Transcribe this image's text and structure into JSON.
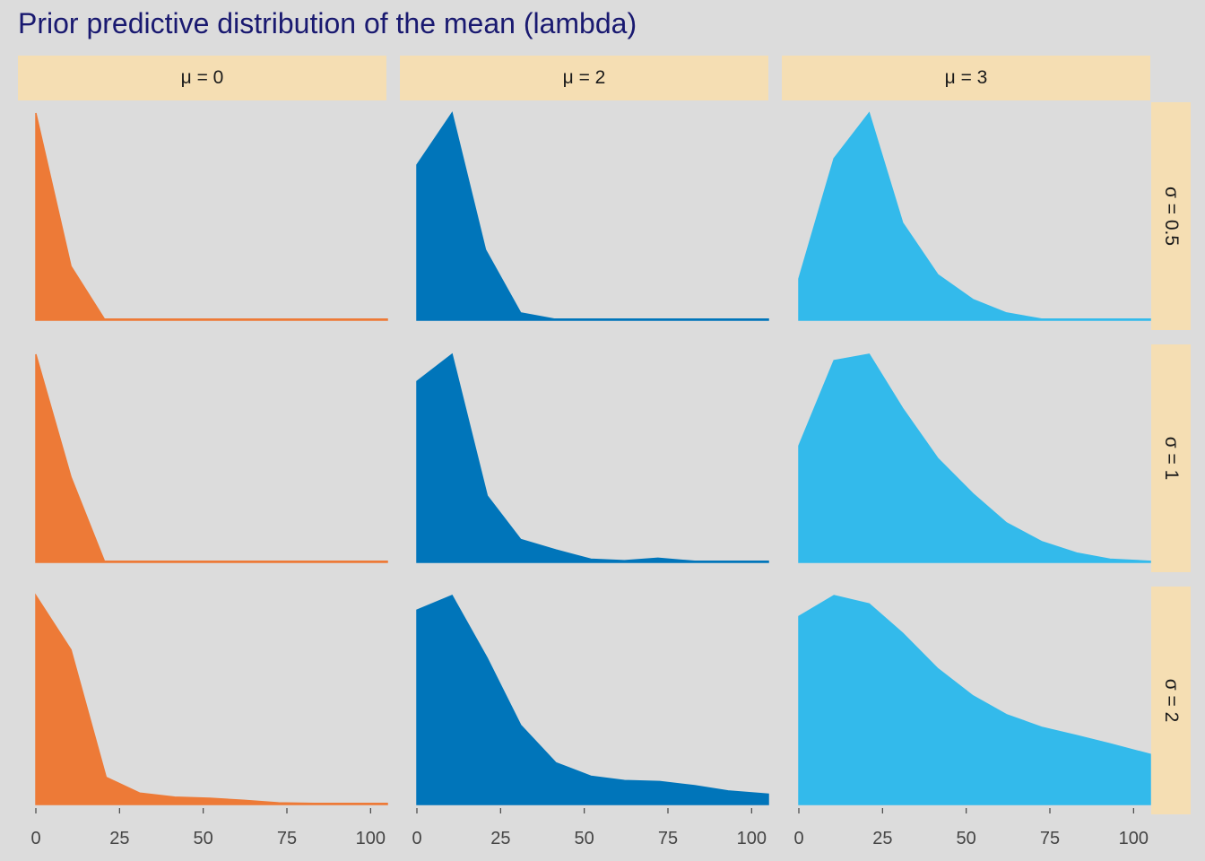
{
  "title": "Prior predictive distribution of the mean (lambda)",
  "chart_data": {
    "type": "area",
    "title": "Prior predictive distribution of the mean (lambda)",
    "xlabel": "",
    "ylabel": "",
    "xlim": [
      0,
      105
    ],
    "x_ticks": [
      0,
      25,
      50,
      75,
      100
    ],
    "x_tick_labels": [
      "0",
      "25",
      "50",
      "75",
      "100"
    ],
    "y_axis_shown": false,
    "grid": false,
    "facet_columns": [
      "μ = 0",
      "μ = 2",
      "μ = 3"
    ],
    "facet_rows": [
      "σ = 0.5",
      "σ = 1",
      "σ = 2"
    ],
    "colors": {
      "μ = 0": "#ed7a37",
      "μ = 2": "#0075ba",
      "μ = 3": "#33baeb"
    },
    "panels": [
      {
        "col": "μ = 0",
        "row": "σ = 0.5",
        "x": [
          0,
          10.5,
          20.5,
          105
        ],
        "y": [
          1.0,
          0.26,
          0.005,
          0.005
        ]
      },
      {
        "col": "μ = 2",
        "row": "σ = 0.5",
        "x": [
          0,
          10.5,
          20.5,
          31,
          41,
          105
        ],
        "y": [
          0.75,
          1.0,
          0.34,
          0.035,
          0.005,
          0.005
        ]
      },
      {
        "col": "μ = 3",
        "row": "σ = 0.5",
        "x": [
          0,
          10.5,
          21,
          31,
          41.5,
          52,
          62,
          72.5,
          83,
          93,
          105
        ],
        "y": [
          0.2,
          0.78,
          1.0,
          0.47,
          0.22,
          0.1,
          0.035,
          0.005,
          0.005,
          0.005,
          0.005
        ]
      },
      {
        "col": "μ = 0",
        "row": "σ = 1",
        "x": [
          0,
          10.5,
          20.5,
          105
        ],
        "y": [
          1.0,
          0.41,
          0.005,
          0.005
        ]
      },
      {
        "col": "μ = 2",
        "row": "σ = 1",
        "x": [
          0,
          10.5,
          21,
          31,
          41.5,
          52,
          62,
          72,
          83,
          93,
          105
        ],
        "y": [
          0.87,
          1.0,
          0.32,
          0.11,
          0.06,
          0.015,
          0.008,
          0.02,
          0.005,
          0.005,
          0.005
        ]
      },
      {
        "col": "μ = 3",
        "row": "σ = 1",
        "x": [
          0,
          10.5,
          21,
          31,
          41.5,
          52,
          62,
          72.5,
          83,
          93,
          105
        ],
        "y": [
          0.56,
          0.97,
          1.0,
          0.74,
          0.5,
          0.33,
          0.19,
          0.1,
          0.045,
          0.015,
          0.005
        ]
      },
      {
        "col": "μ = 0",
        "row": "σ = 2",
        "x": [
          0,
          10.5,
          21,
          31,
          41.5,
          52,
          62,
          72.5,
          83,
          93,
          105
        ],
        "y": [
          1.0,
          0.74,
          0.13,
          0.055,
          0.035,
          0.03,
          0.02,
          0.008,
          0.005,
          0.005,
          0.005
        ]
      },
      {
        "col": "μ = 2",
        "row": "σ = 2",
        "x": [
          0,
          10.5,
          21,
          31,
          41.5,
          52,
          62,
          72.5,
          83,
          93,
          105
        ],
        "y": [
          0.93,
          1.0,
          0.7,
          0.38,
          0.2,
          0.135,
          0.115,
          0.11,
          0.09,
          0.065,
          0.05
        ]
      },
      {
        "col": "μ = 3",
        "row": "σ = 2",
        "x": [
          0,
          10.5,
          21,
          31,
          41.5,
          52,
          62,
          72.5,
          83,
          93,
          105
        ],
        "y": [
          0.9,
          1.0,
          0.96,
          0.82,
          0.65,
          0.52,
          0.43,
          0.37,
          0.33,
          0.29,
          0.24
        ]
      }
    ]
  }
}
